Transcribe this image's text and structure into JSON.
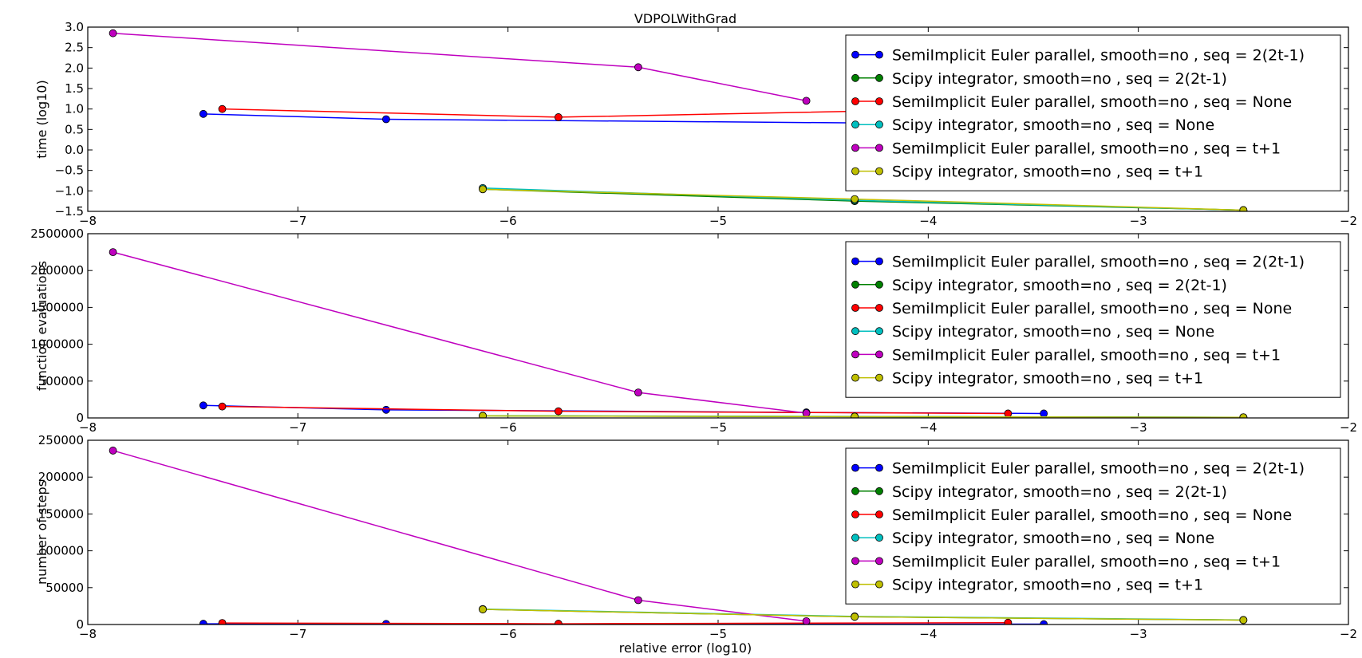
{
  "figure": {
    "title": "VDPOLWithGrad",
    "xlabel": "relative error (log10)"
  },
  "chart_data": [
    {
      "type": "line",
      "title": "VDPOLWithGrad",
      "xlabel": "",
      "ylabel": "time (log10)",
      "xlim": [
        -8,
        -2
      ],
      "ylim": [
        -1.5,
        3.0
      ],
      "xticks": [
        -8,
        -7,
        -6,
        -5,
        -4,
        -3,
        -2
      ],
      "xtick_labels": [
        "−8",
        "−7",
        "−6",
        "−5",
        "−4",
        "−3",
        "−2"
      ],
      "yticks": [
        -1.5,
        -1.0,
        -0.5,
        0.0,
        0.5,
        1.0,
        1.5,
        2.0,
        2.5,
        3.0
      ],
      "ytick_labels": [
        "−1.5",
        "−1.0",
        "−0.5",
        "0.0",
        "0.5",
        "1.0",
        "1.5",
        "2.0",
        "2.5",
        "3.0"
      ],
      "grid": false,
      "legend_position": "top-right",
      "series": [
        {
          "name": "SemiImplicit Euler parallel, smooth=no , seq = 2(2t-1)",
          "color": "#0000ff",
          "x": [
            -7.45,
            -6.58,
            -4.1,
            -3.45
          ],
          "y": [
            0.88,
            0.75,
            0.65,
            0.62
          ]
        },
        {
          "name": "Scipy integrator, smooth=no , seq = 2(2t-1)",
          "color": "#008000",
          "x": [
            -6.12,
            -4.35,
            -2.5
          ],
          "y": [
            -0.96,
            -1.25,
            -1.47
          ]
        },
        {
          "name": "SemiImplicit Euler parallel, smooth=no , seq = None",
          "color": "#ff0000",
          "x": [
            -7.36,
            -5.76,
            -4.0,
            -3.62
          ],
          "y": [
            1.0,
            0.8,
            0.98,
            1.0
          ]
        },
        {
          "name": "Scipy integrator, smooth=no , seq = None",
          "color": "#00bfbf",
          "x": [
            -6.12,
            -4.35,
            -2.5
          ],
          "y": [
            -0.93,
            -1.23,
            -1.47
          ]
        },
        {
          "name": "SemiImplicit Euler parallel, smooth=no , seq = t+1",
          "color": "#bf00bf",
          "x": [
            -7.88,
            -5.38,
            -4.58
          ],
          "y": [
            2.85,
            2.02,
            1.2
          ]
        },
        {
          "name": "Scipy integrator, smooth=no , seq = t+1",
          "color": "#bfbf00",
          "x": [
            -6.12,
            -4.35,
            -2.5
          ],
          "y": [
            -0.96,
            -1.2,
            -1.47
          ]
        }
      ]
    },
    {
      "type": "line",
      "title": "",
      "xlabel": "",
      "ylabel": "function evaluations",
      "xlim": [
        -8,
        -2
      ],
      "ylim": [
        0,
        2500000
      ],
      "xticks": [
        -8,
        -7,
        -6,
        -5,
        -4,
        -3,
        -2
      ],
      "xtick_labels": [
        "−8",
        "−7",
        "−6",
        "−5",
        "−4",
        "−3",
        "−2"
      ],
      "yticks": [
        0,
        500000,
        1000000,
        1500000,
        2000000,
        2500000
      ],
      "ytick_labels": [
        "0",
        "500000",
        "1000000",
        "1500000",
        "2000000",
        "2500000"
      ],
      "grid": false,
      "legend_position": "top-right",
      "series": [
        {
          "name": "SemiImplicit Euler parallel, smooth=no , seq = 2(2t-1)",
          "color": "#0000ff",
          "x": [
            -7.45,
            -6.58,
            -4.58,
            -3.45
          ],
          "y": [
            170000,
            110000,
            75000,
            60000
          ]
        },
        {
          "name": "Scipy integrator, smooth=no , seq = 2(2t-1)",
          "color": "#008000",
          "x": [
            -6.12,
            -4.35,
            -2.5
          ],
          "y": [
            28000,
            18000,
            8000
          ]
        },
        {
          "name": "SemiImplicit Euler parallel, smooth=no , seq = None",
          "color": "#ff0000",
          "x": [
            -7.36,
            -5.76,
            -3.62
          ],
          "y": [
            155000,
            90000,
            60000
          ]
        },
        {
          "name": "Scipy integrator, smooth=no , seq = None",
          "color": "#00bfbf",
          "x": [
            -6.12,
            -4.35,
            -2.5
          ],
          "y": [
            30000,
            20000,
            8000
          ]
        },
        {
          "name": "SemiImplicit Euler parallel, smooth=no , seq = t+1",
          "color": "#bf00bf",
          "x": [
            -7.88,
            -5.38,
            -4.58
          ],
          "y": [
            2250000,
            345000,
            65000
          ]
        },
        {
          "name": "Scipy integrator, smooth=no , seq = t+1",
          "color": "#bfbf00",
          "x": [
            -6.12,
            -4.35,
            -2.5
          ],
          "y": [
            28000,
            18000,
            8000
          ]
        }
      ]
    },
    {
      "type": "line",
      "title": "",
      "xlabel": "relative error (log10)",
      "ylabel": "number of steps",
      "xlim": [
        -8,
        -2
      ],
      "ylim": [
        0,
        250000
      ],
      "xticks": [
        -8,
        -7,
        -6,
        -5,
        -4,
        -3,
        -2
      ],
      "xtick_labels": [
        "−8",
        "−7",
        "−6",
        "−5",
        "−4",
        "−3",
        "−2"
      ],
      "yticks": [
        0,
        50000,
        100000,
        150000,
        200000,
        250000
      ],
      "ytick_labels": [
        "0",
        "50000",
        "100000",
        "150000",
        "200000",
        "250000"
      ],
      "grid": false,
      "legend_position": "top-right",
      "series": [
        {
          "name": "SemiImplicit Euler parallel, smooth=no , seq = 2(2t-1)",
          "color": "#0000ff",
          "x": [
            -7.45,
            -6.58,
            -3.45
          ],
          "y": [
            1000,
            800,
            500
          ]
        },
        {
          "name": "Scipy integrator, smooth=no , seq = 2(2t-1)",
          "color": "#008000",
          "x": [
            -6.12,
            -4.35,
            -2.5
          ],
          "y": [
            20500,
            10500,
            6000
          ]
        },
        {
          "name": "SemiImplicit Euler parallel, smooth=no , seq = None",
          "color": "#ff0000",
          "x": [
            -7.36,
            -5.76,
            -3.62
          ],
          "y": [
            2000,
            1000,
            2500
          ]
        },
        {
          "name": "Scipy integrator, smooth=no , seq = None",
          "color": "#00bfbf",
          "x": [
            -6.12,
            -4.35,
            -2.5
          ],
          "y": [
            21000,
            11000,
            6200
          ]
        },
        {
          "name": "SemiImplicit Euler parallel, smooth=no , seq = t+1",
          "color": "#bf00bf",
          "x": [
            -7.88,
            -5.38,
            -4.58
          ],
          "y": [
            236000,
            33000,
            4500
          ]
        },
        {
          "name": "Scipy integrator, smooth=no , seq = t+1",
          "color": "#bfbf00",
          "x": [
            -6.12,
            -4.35,
            -2.5
          ],
          "y": [
            20500,
            10500,
            6000
          ]
        }
      ]
    }
  ]
}
